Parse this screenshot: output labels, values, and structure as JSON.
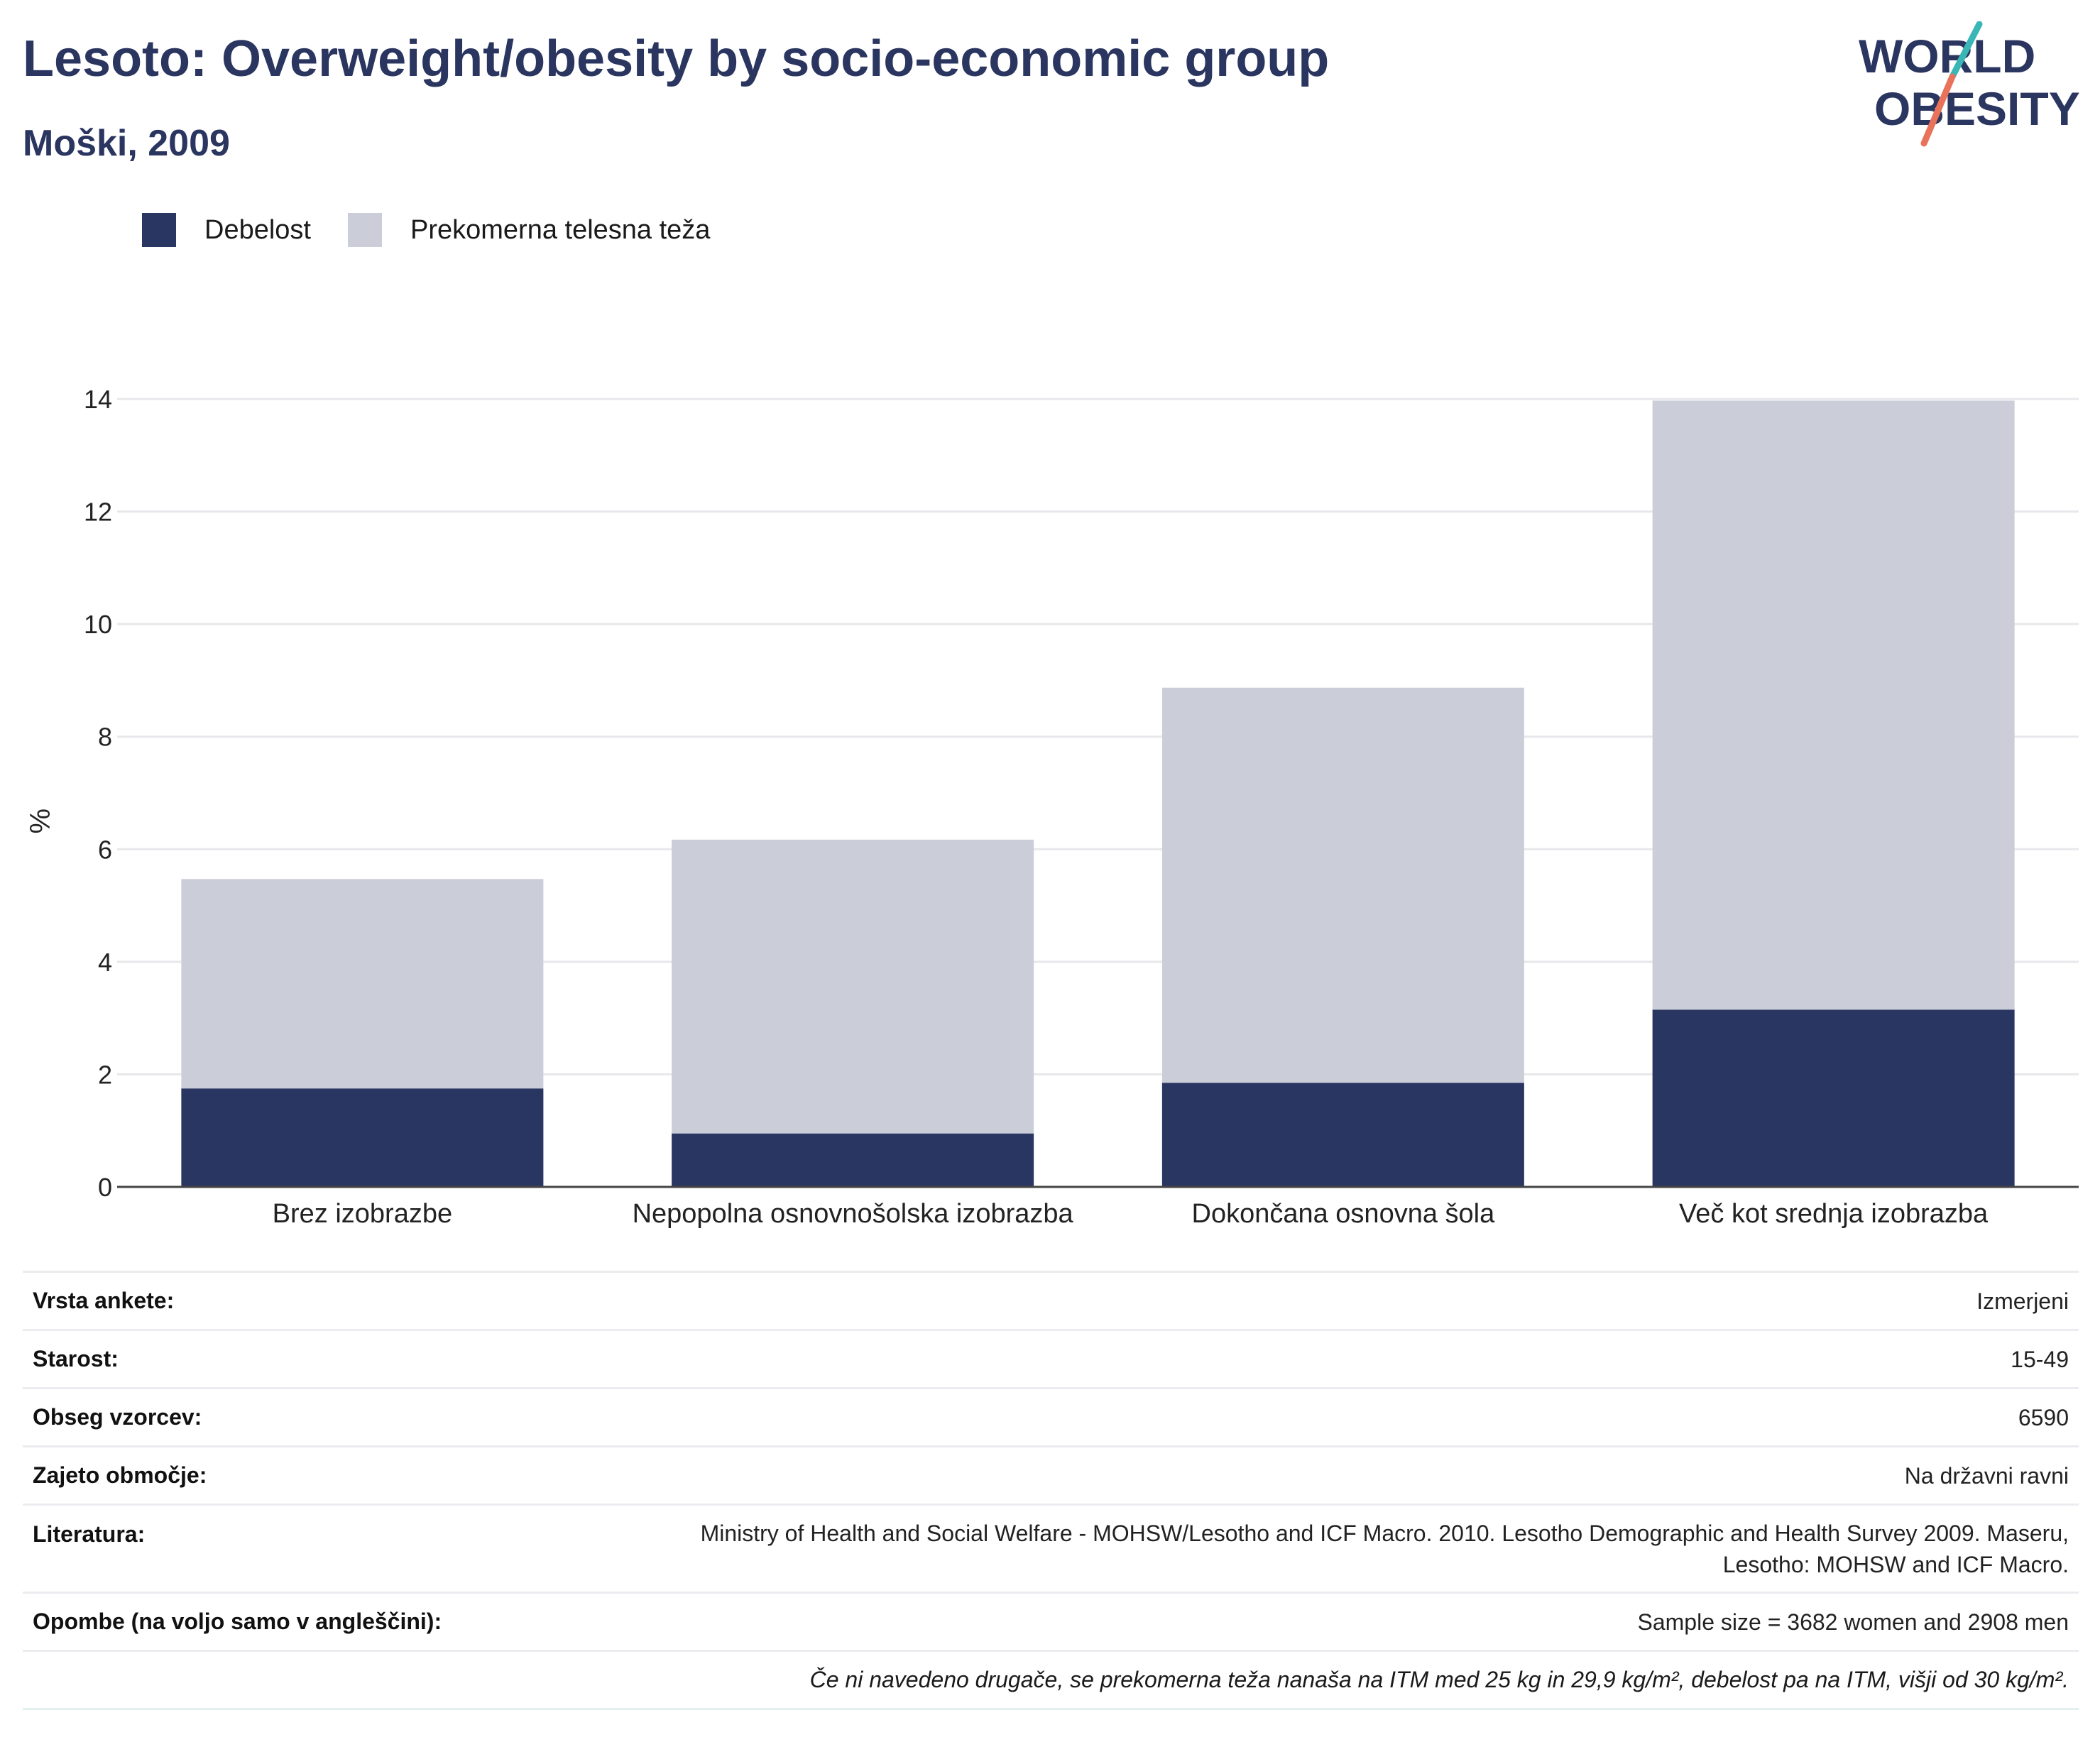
{
  "title": "Lesoto: Overweight/obesity by socio-economic group",
  "subtitle": "Moški, 2009",
  "logo": {
    "line1": "WORLD",
    "line2": "OBESITY"
  },
  "colors": {
    "obesity": "#2a3662",
    "overweight": "#cbcdd8",
    "title": "#2a3560"
  },
  "chart_data": {
    "type": "bar",
    "stacked": true,
    "categories": [
      "Brez izobrazbe",
      "Nepopolna osnovnošolska izobrazba",
      "Dokončana osnovna šola",
      "Več kot srednja izobrazba"
    ],
    "series": [
      {
        "name": "Debelost",
        "values": [
          1.75,
          0.95,
          1.85,
          3.15
        ]
      },
      {
        "name": "Prekomerna telesna teža",
        "values": [
          3.72,
          5.22,
          7.02,
          10.82
        ]
      }
    ],
    "ylabel": "%",
    "xlabel": "",
    "ylim": [
      0,
      14
    ],
    "yticks": [
      0,
      2,
      4,
      6,
      8,
      10,
      12,
      14
    ],
    "grid": true,
    "legend": "top-left"
  },
  "info": {
    "rows": [
      {
        "key": "Vrsta ankete:",
        "value": "Izmerjeni"
      },
      {
        "key": "Starost:",
        "value": "15-49"
      },
      {
        "key": "Obseg vzorcev:",
        "value": "6590"
      },
      {
        "key": "Zajeto območje:",
        "value": "Na državni ravni"
      },
      {
        "key": "Literatura:",
        "value_line1": "Ministry of Health and Social Welfare - MOHSW/Lesotho and ICF Macro. 2010. Lesotho Demographic and Health Survey 2009. Maseru,",
        "value_line2": "Lesotho: MOHSW and ICF Macro."
      },
      {
        "key": "Opombe (na voljo samo v angleščini):",
        "value": "Sample size = 3682 women and 2908 men"
      }
    ],
    "note": "Če ni navedeno drugače, se prekomerna teža nanaša na ITM med 25 kg in 29,9 kg/m², debelost pa na ITM, višji od 30 kg/m²."
  }
}
